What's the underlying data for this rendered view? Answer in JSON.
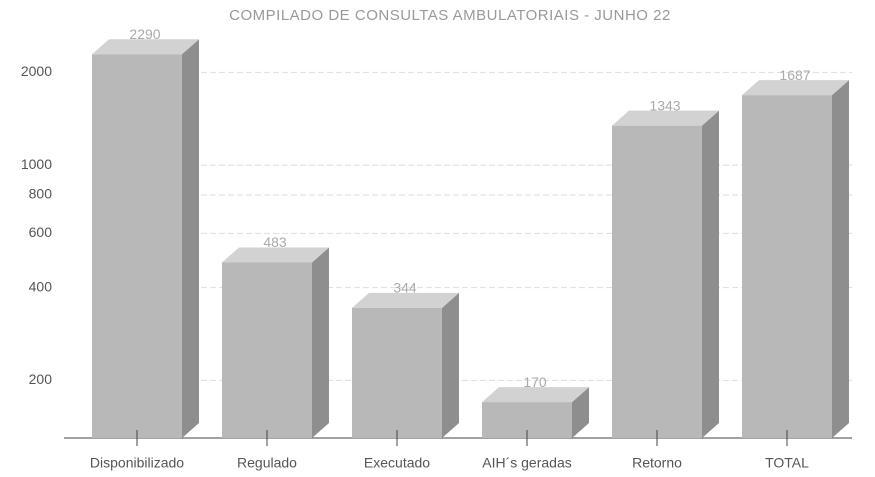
{
  "chart_data": {
    "type": "bar",
    "title": "COMPILADO DE CONSULTAS AMBULATORIAIS - JUNHO 22",
    "categories": [
      "Disponibilizado",
      "Regulado",
      "Executado",
      "AIH´s geradas",
      "Retorno",
      "TOTAL"
    ],
    "values": [
      2290,
      483,
      344,
      170,
      1343,
      1687
    ],
    "color": "#b8b8b8",
    "log_scale": true,
    "ylim": [
      130,
      2400
    ],
    "yticks": [
      200,
      400,
      600,
      800,
      1000,
      2000
    ],
    "grid": true
  }
}
